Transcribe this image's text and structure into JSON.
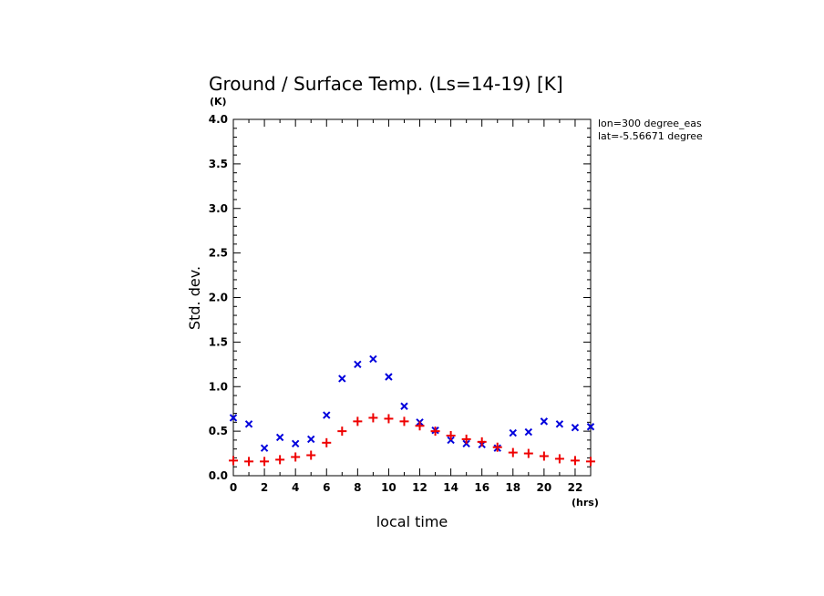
{
  "chart_data": {
    "type": "scatter",
    "title": "Ground / Surface Temp. (Ls=14-19) [K]",
    "y_unit": "(K)",
    "x_unit": "(hrs)",
    "xlabel": "local time",
    "ylabel": "Std. dev.",
    "xlim": [
      0,
      23
    ],
    "ylim": [
      0,
      4
    ],
    "x_ticks": [
      0,
      2,
      4,
      6,
      8,
      10,
      12,
      14,
      16,
      18,
      20,
      22
    ],
    "y_ticks": [
      0.0,
      0.5,
      1.0,
      1.5,
      2.0,
      2.5,
      3.0,
      3.5,
      4.0
    ],
    "x_tick_labels": [
      "0",
      "2",
      "4",
      "6",
      "8",
      "10",
      "12",
      "14",
      "16",
      "18",
      "20",
      "22"
    ],
    "y_tick_labels": [
      "0.0",
      "0.5",
      "1.0",
      "1.5",
      "2.0",
      "2.5",
      "3.0",
      "3.5",
      "4.0"
    ],
    "info_lines": [
      "lon=300 degree_eas",
      "lat=-5.56671 degree"
    ],
    "series": [
      {
        "marker": "x",
        "color": "#0000dd",
        "x": [
          0,
          1,
          2,
          3,
          4,
          5,
          6,
          7,
          8,
          9,
          10,
          11,
          12,
          13,
          14,
          15,
          16,
          17,
          18,
          19,
          20,
          21,
          22,
          23
        ],
        "y": [
          0.65,
          0.58,
          0.31,
          0.43,
          0.36,
          0.41,
          0.68,
          1.09,
          1.25,
          1.31,
          1.11,
          0.78,
          0.6,
          0.51,
          0.4,
          0.36,
          0.35,
          0.31,
          0.48,
          0.49,
          0.61,
          0.58,
          0.54,
          0.55
        ]
      },
      {
        "marker": "+",
        "color": "#ee0000",
        "x": [
          0,
          1,
          2,
          3,
          4,
          5,
          6,
          7,
          8,
          9,
          10,
          11,
          12,
          13,
          14,
          15,
          16,
          17,
          18,
          19,
          20,
          21,
          22,
          23
        ],
        "y": [
          0.17,
          0.16,
          0.16,
          0.18,
          0.21,
          0.23,
          0.37,
          0.5,
          0.61,
          0.65,
          0.64,
          0.61,
          0.56,
          0.5,
          0.45,
          0.41,
          0.38,
          0.32,
          0.26,
          0.25,
          0.22,
          0.19,
          0.17,
          0.16
        ]
      }
    ]
  }
}
